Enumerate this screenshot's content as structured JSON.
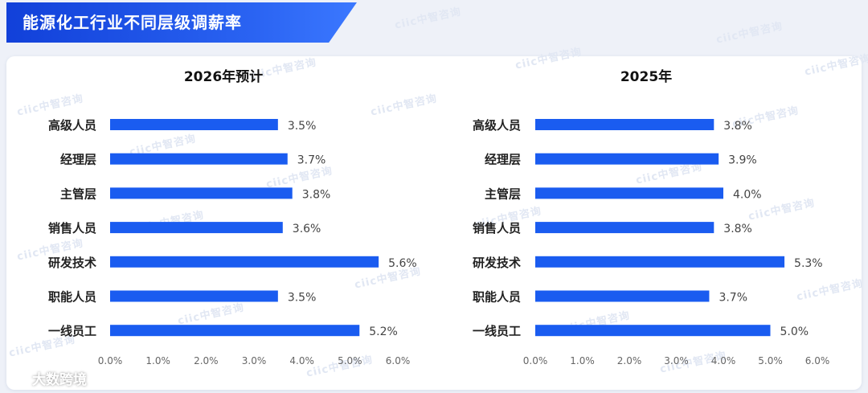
{
  "page_title": "能源化工行业不同层级调薪率",
  "watermark": "ciic中智咨询",
  "source_mark": "大数跨境",
  "colors": {
    "bar": "#1a5cf0",
    "title_bg": "#1a4fe3",
    "tick": "#666666",
    "label": "#222222"
  },
  "chart_data": [
    {
      "type": "bar",
      "orientation": "horizontal",
      "title": "2026年预计",
      "categories": [
        "高级人员",
        "经理层",
        "主管层",
        "销售人员",
        "研发技术",
        "职能人员",
        "一线员工"
      ],
      "values": [
        3.5,
        3.7,
        3.8,
        3.6,
        5.6,
        3.5,
        5.2
      ],
      "value_labels": [
        "3.5%",
        "3.7%",
        "3.8%",
        "3.6%",
        "5.6%",
        "3.5%",
        "5.2%"
      ],
      "xlim": [
        0,
        6
      ],
      "ticks": [
        "0.0%",
        "1.0%",
        "2.0%",
        "3.0%",
        "4.0%",
        "5.0%",
        "6.0%"
      ],
      "grid": false
    },
    {
      "type": "bar",
      "orientation": "horizontal",
      "title": "2025年",
      "categories": [
        "高级人员",
        "经理层",
        "主管层",
        "销售人员",
        "研发技术",
        "职能人员",
        "一线员工"
      ],
      "values": [
        3.8,
        3.9,
        4.0,
        3.8,
        5.3,
        3.7,
        5.0
      ],
      "value_labels": [
        "3.8%",
        "3.9%",
        "4.0%",
        "3.8%",
        "5.3%",
        "3.7%",
        "5.0%"
      ],
      "xlim": [
        0,
        6
      ],
      "ticks": [
        "0.0%",
        "1.0%",
        "2.0%",
        "3.0%",
        "4.0%",
        "5.0%",
        "6.0%"
      ],
      "grid": false
    }
  ]
}
